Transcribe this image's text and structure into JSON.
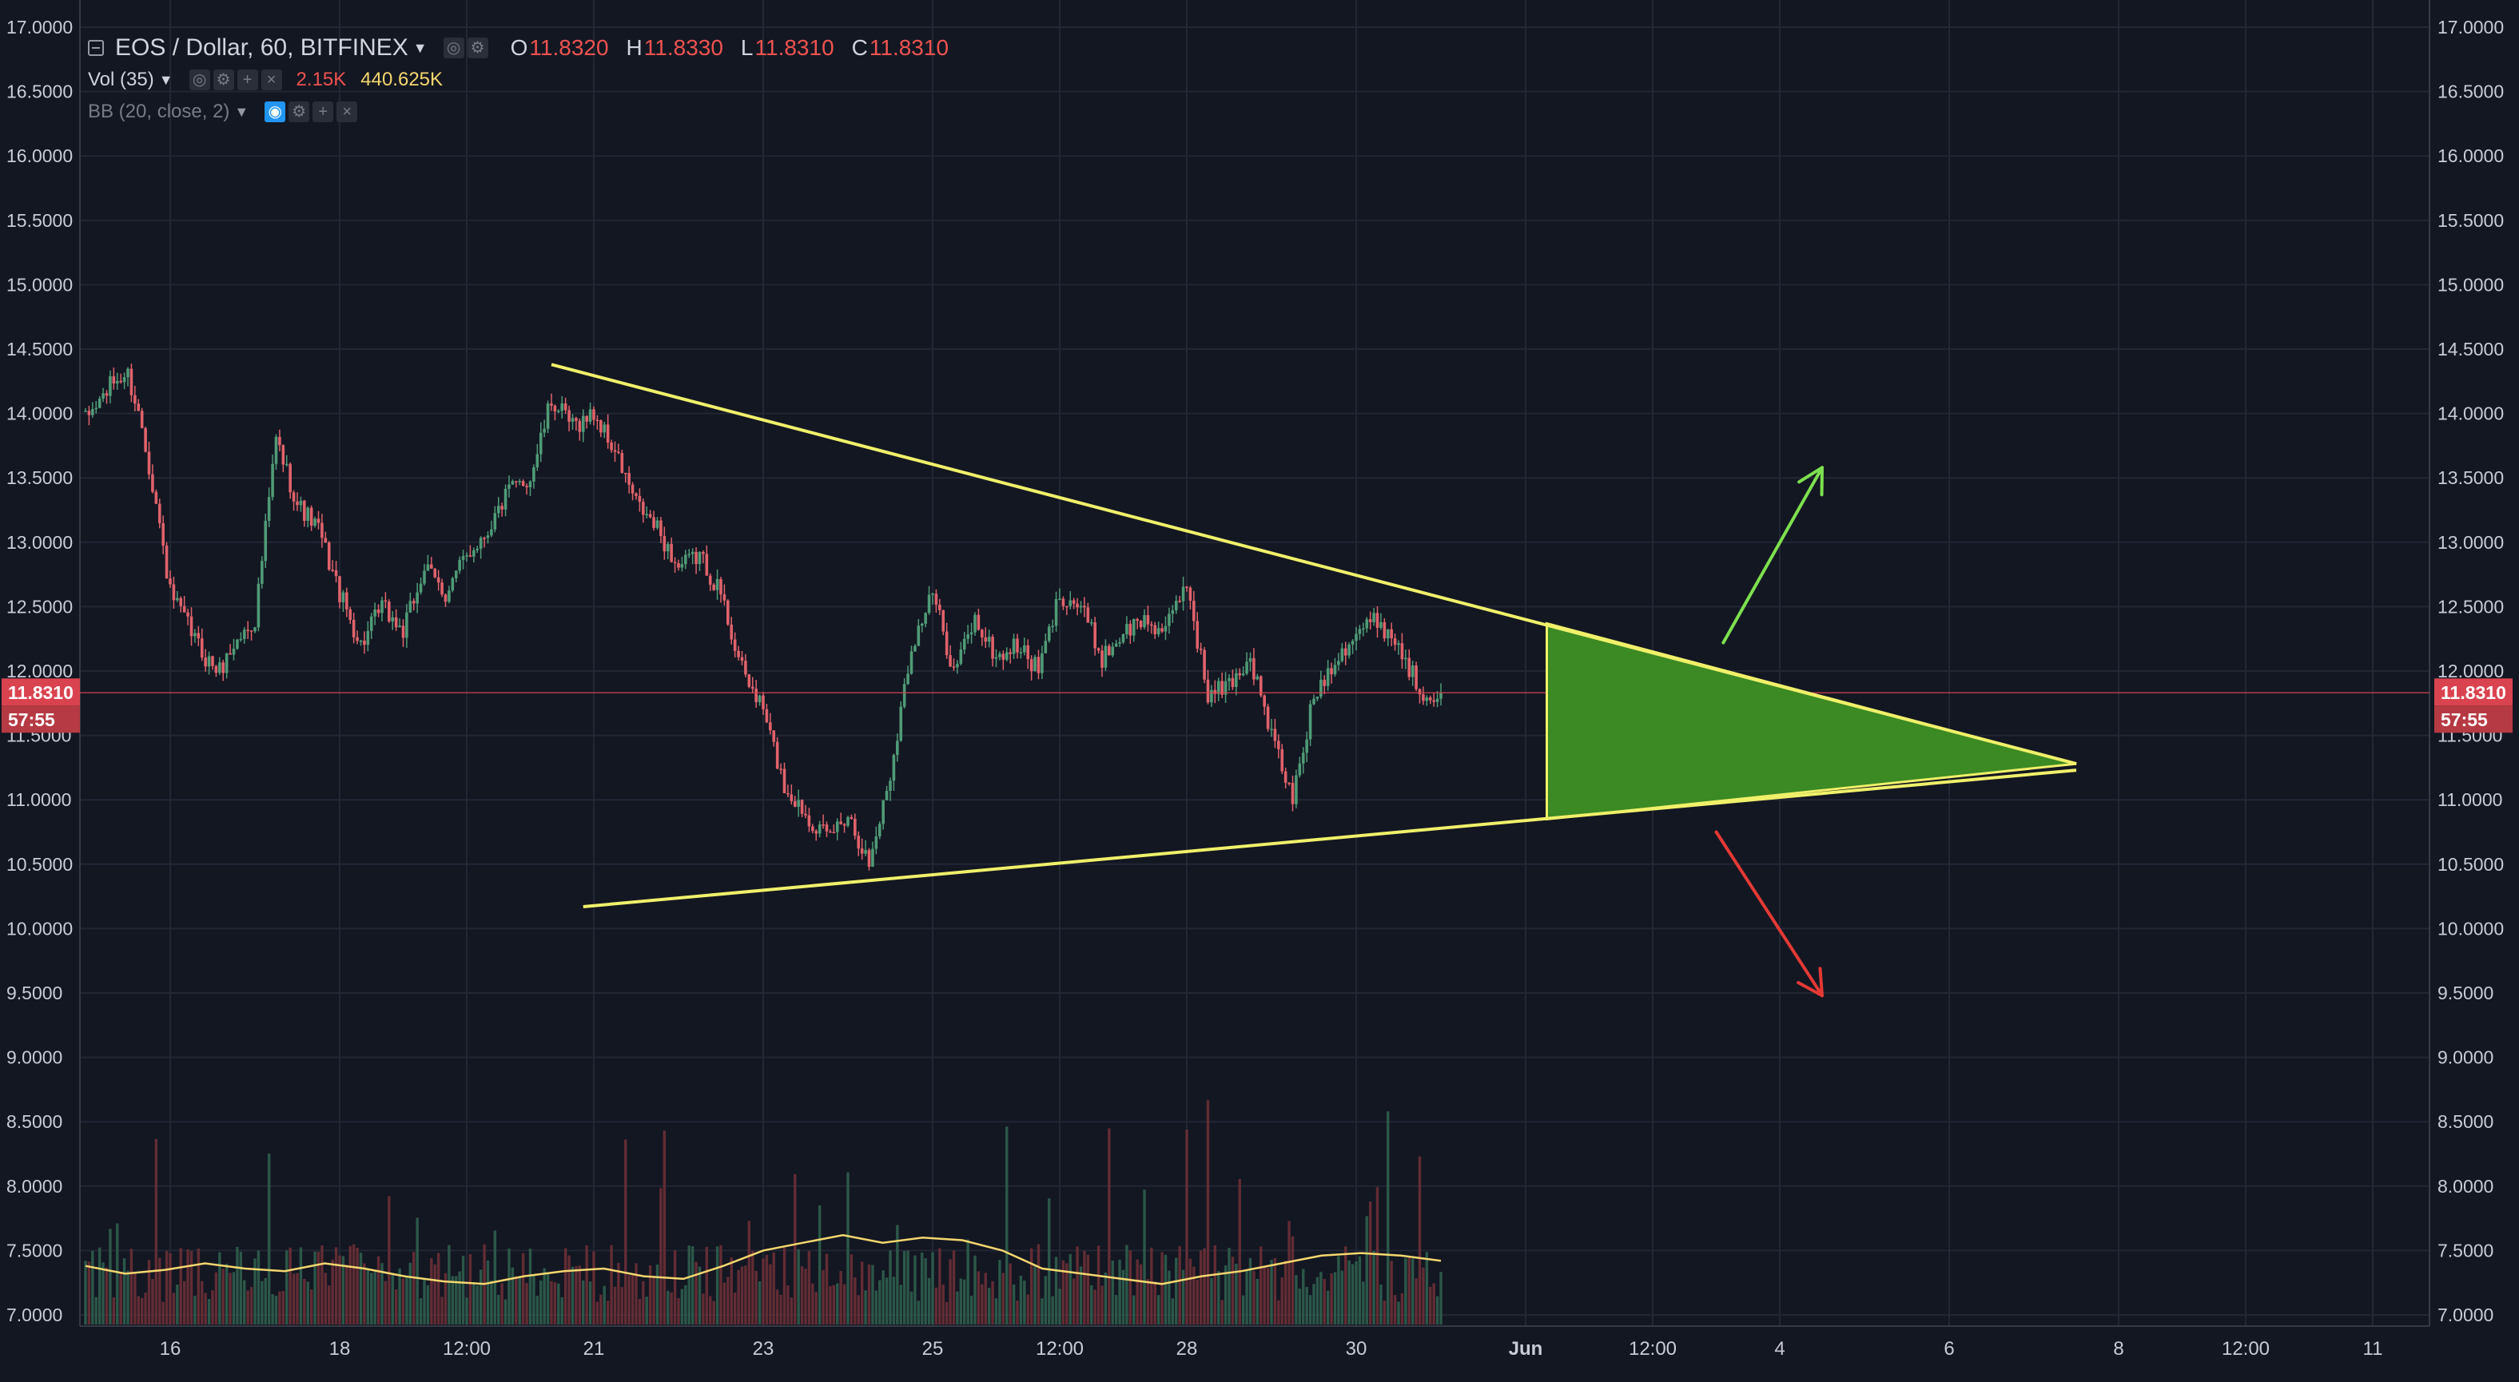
{
  "symbol": {
    "title": "EOS / Dollar, 60, BITFINEX",
    "ohlc": [
      {
        "label": "O",
        "value": "11.8320"
      },
      {
        "label": "H",
        "value": "11.8330"
      },
      {
        "label": "L",
        "value": "11.8310"
      },
      {
        "label": "C",
        "value": "11.8310"
      }
    ]
  },
  "indicators": {
    "volume": {
      "name": "Vol (35)",
      "value1": "2.15K",
      "value2": "440.625K"
    },
    "bb": {
      "name": "BB (20, close, 2)"
    }
  },
  "price_axis": {
    "labels": [
      "17.0000",
      "16.5000",
      "16.0000",
      "15.5000",
      "15.0000",
      "14.5000",
      "14.0000",
      "13.5000",
      "13.0000",
      "12.5000",
      "12.0000",
      "11.5000",
      "11.0000",
      "10.5000",
      "10.0000",
      "9.5000",
      "9.0000",
      "8.5000",
      "8.0000",
      "7.5000",
      "7.0000"
    ],
    "last_price": "11.8310",
    "countdown": "57:55"
  },
  "time_axis": {
    "labels": [
      "16",
      "18",
      "12:00",
      "21",
      "23",
      "25",
      "12:00",
      "28",
      "30",
      "Jun",
      "12:00",
      "4",
      "6",
      "8",
      "12:00",
      "11"
    ]
  },
  "colors": {
    "background": "#131722",
    "up": "#4f9b77",
    "down": "#e0626b",
    "trendline": "#f0f06a",
    "triangle_fill": "#3b8a24",
    "arrow_up": "#7ee04f",
    "arrow_down": "#e53935",
    "last_price_tag": "#d9434f"
  },
  "chart_data": {
    "type": "candlestick",
    "price_range": [
      7.0,
      17.0
    ],
    "x_range": [
      "May 15",
      "Jun 11"
    ],
    "grid": true,
    "last_price": 11.831,
    "close_path": [
      [
        "May 15 00:00",
        13.95
      ],
      [
        "May 15 08:00",
        14.25
      ],
      [
        "May 15 12:00",
        14.3
      ],
      [
        "May 15 16:00",
        13.9
      ],
      [
        "May 15 20:00",
        13.3
      ],
      [
        "May 16 00:00",
        12.6
      ],
      [
        "May 16 06:00",
        12.3
      ],
      [
        "May 16 10:00",
        12.1
      ],
      [
        "May 16 14:00",
        12.0
      ],
      [
        "May 16 18:00",
        12.2
      ],
      [
        "May 17 00:00",
        12.4
      ],
      [
        "May 17 06:00",
        13.8
      ],
      [
        "May 17 12:00",
        13.3
      ],
      [
        "May 17 18:00",
        13.1
      ],
      [
        "May 18 00:00",
        12.6
      ],
      [
        "May 18 06:00",
        12.2
      ],
      [
        "May 18 12:00",
        12.5
      ],
      [
        "May 18 18:00",
        12.3
      ],
      [
        "May 19 00:00",
        12.8
      ],
      [
        "May 19 06:00",
        12.6
      ],
      [
        "May 19 12:00",
        12.9
      ],
      [
        "May 19 18:00",
        13.1
      ],
      [
        "May 20 00:00",
        13.4
      ],
      [
        "May 20 06:00",
        13.5
      ],
      [
        "May 20 12:00",
        14.1
      ],
      [
        "May 20 18:00",
        13.9
      ],
      [
        "May 21 00:00",
        14.0
      ],
      [
        "May 21 06:00",
        13.7
      ],
      [
        "May 21 12:00",
        13.3
      ],
      [
        "May 21 18:00",
        13.1
      ],
      [
        "May 22 00:00",
        12.8
      ],
      [
        "May 22 06:00",
        12.9
      ],
      [
        "May 22 12:00",
        12.6
      ],
      [
        "May 22 18:00",
        12.0
      ],
      [
        "May 23 00:00",
        11.7
      ],
      [
        "May 23 06:00",
        11.1
      ],
      [
        "May 23 12:00",
        10.9
      ],
      [
        "May 23 18:00",
        10.7
      ],
      [
        "May 24 00:00",
        10.9
      ],
      [
        "May 24 06:00",
        10.5
      ],
      [
        "May 24 12:00",
        11.2
      ],
      [
        "May 24 18:00",
        12.2
      ],
      [
        "May 25 00:00",
        12.6
      ],
      [
        "May 25 06:00",
        12.0
      ],
      [
        "May 25 12:00",
        12.4
      ],
      [
        "May 25 18:00",
        12.1
      ],
      [
        "May 26 00:00",
        12.2
      ],
      [
        "May 26 06:00",
        12.0
      ],
      [
        "May 26 12:00",
        12.6
      ],
      [
        "May 26 18:00",
        12.5
      ],
      [
        "May 27 00:00",
        12.1
      ],
      [
        "May 27 06:00",
        12.3
      ],
      [
        "May 27 12:00",
        12.4
      ],
      [
        "May 27 18:00",
        12.3
      ],
      [
        "May 28 00:00",
        12.7
      ],
      [
        "May 28 06:00",
        11.8
      ],
      [
        "May 28 12:00",
        11.9
      ],
      [
        "May 28 18:00",
        12.1
      ],
      [
        "May 29 00:00",
        11.5
      ],
      [
        "May 29 06:00",
        11.0
      ],
      [
        "May 29 12:00",
        11.8
      ],
      [
        "May 29 18:00",
        12.1
      ],
      [
        "May 30 00:00",
        12.3
      ],
      [
        "May 30 06:00",
        12.4
      ],
      [
        "May 30 12:00",
        12.2
      ],
      [
        "May 30 18:00",
        11.85
      ],
      [
        "May 31 00:00",
        11.831
      ]
    ],
    "volume_ma_path": [
      7.38,
      7.32,
      7.35,
      7.4,
      7.36,
      7.34,
      7.4,
      7.36,
      7.3,
      7.26,
      7.24,
      7.3,
      7.34,
      7.36,
      7.3,
      7.28,
      7.38,
      7.5,
      7.56,
      7.62,
      7.56,
      7.6,
      7.58,
      7.5,
      7.36,
      7.32,
      7.28,
      7.24,
      7.3,
      7.34,
      7.4,
      7.46,
      7.48,
      7.46,
      7.42
    ],
    "annotations": [
      {
        "type": "trendline",
        "name": "descending-resistance",
        "from": [
          "May 20 12:00",
          14.38
        ],
        "to": [
          "Jun 7 12:00",
          11.28
        ]
      },
      {
        "type": "trendline",
        "name": "ascending-support",
        "from": [
          "May 20 21:00",
          10.17
        ],
        "to": [
          "Jun 7 12:00",
          11.23
        ]
      },
      {
        "type": "triangle",
        "name": "projection-triangle",
        "points": [
          [
            "Jun 1 06:00",
            12.37
          ],
          [
            "Jun 1 06:00",
            10.85
          ],
          [
            "Jun 7 12:00",
            11.28
          ]
        ]
      },
      {
        "type": "arrow",
        "name": "breakout-up-arrow",
        "from": [
          "Jun 3 08:00",
          12.22
        ],
        "to": [
          "Jun 4 12:00",
          13.58
        ]
      },
      {
        "type": "arrow",
        "name": "breakdown-down-arrow",
        "from": [
          "Jun 3 06:00",
          10.75
        ],
        "to": [
          "Jun 4 12:00",
          9.48
        ]
      }
    ]
  }
}
